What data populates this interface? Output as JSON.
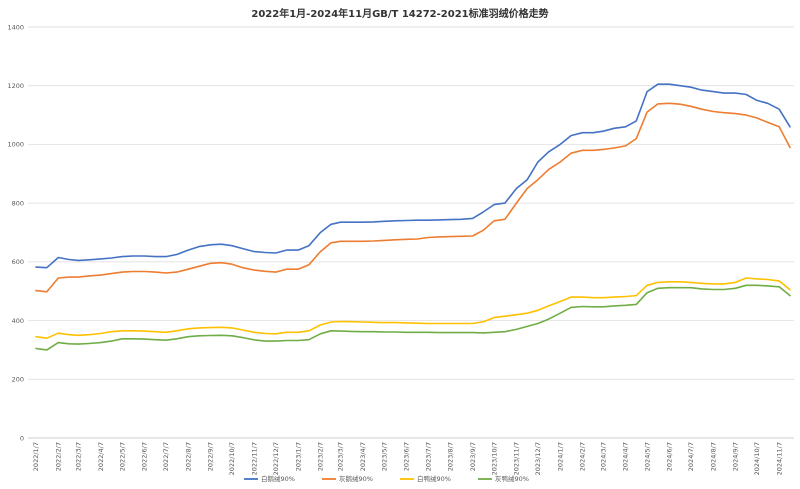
{
  "chart_data": {
    "type": "line",
    "title": "2022年1月-2024年11月GB/T 14272-2021标准羽绒价格走势",
    "xlabel": "",
    "ylabel": "",
    "ylim": [
      0,
      1400
    ],
    "yticks": [
      0,
      200,
      400,
      600,
      800,
      1000,
      1200,
      1400
    ],
    "grid": true,
    "legend": "bottom",
    "colors": {
      "白鹅绒90%": "#4472c4",
      "灰鹅绒90%": "#ed7d31",
      "白鸭绒90%": "#ffc000",
      "灰鸭绒90%": "#70ad47",
      "grid": "#d9d9d9"
    },
    "x_ticks": [
      "2022/1/7",
      "2022/2/7",
      "2022/3/7",
      "2022/4/7",
      "2022/5/7",
      "2022/6/7",
      "2022/7/7",
      "2022/8/7",
      "2022/9/7",
      "2022/10/7",
      "2022/11/7",
      "2022/12/7",
      "2023/1/7",
      "2023/2/7",
      "2023/3/7",
      "2023/4/7",
      "2023/5/7",
      "2023/6/7",
      "2023/7/7",
      "2023/8/7",
      "2023/9/7",
      "2023/10/7",
      "2023/11/7",
      "2023/12/7",
      "2024/1/7",
      "2024/2/7",
      "2024/3/7",
      "2024/4/7",
      "2024/5/7",
      "2024/6/7",
      "2024/7/7",
      "2024/8/7",
      "2024/9/7",
      "2024/10/7",
      "2024/11/7"
    ],
    "x": [
      "2022/1/7",
      "2022/1/22",
      "2022/2/7",
      "2022/2/22",
      "2022/3/7",
      "2022/3/22",
      "2022/4/7",
      "2022/4/22",
      "2022/5/7",
      "2022/5/22",
      "2022/6/7",
      "2022/6/22",
      "2022/7/7",
      "2022/7/22",
      "2022/8/7",
      "2022/8/22",
      "2022/9/7",
      "2022/9/22",
      "2022/10/7",
      "2022/10/22",
      "2022/11/7",
      "2022/11/22",
      "2022/12/7",
      "2022/12/22",
      "2023/1/7",
      "2023/1/22",
      "2023/2/7",
      "2023/2/22",
      "2023/3/7",
      "2023/3/22",
      "2023/4/7",
      "2023/4/22",
      "2023/5/7",
      "2023/5/22",
      "2023/6/7",
      "2023/6/22",
      "2023/7/7",
      "2023/7/22",
      "2023/8/7",
      "2023/8/22",
      "2023/9/7",
      "2023/9/22",
      "2023/10/7",
      "2023/10/22",
      "2023/11/7",
      "2023/11/22",
      "2023/12/7",
      "2023/12/22",
      "2024/1/7",
      "2024/1/22",
      "2024/2/7",
      "2024/2/22",
      "2024/3/7",
      "2024/3/22",
      "2024/4/7",
      "2024/4/22",
      "2024/5/7",
      "2024/5/22",
      "2024/6/7",
      "2024/6/22",
      "2024/7/7",
      "2024/7/22",
      "2024/8/7",
      "2024/8/22",
      "2024/9/7",
      "2024/9/22",
      "2024/10/7",
      "2024/10/22",
      "2024/11/7",
      "2024/11/22"
    ],
    "series": [
      {
        "name": "白鹅绒90%",
        "values": [
          582,
          580,
          615,
          608,
          605,
          607,
          610,
          613,
          618,
          620,
          620,
          618,
          618,
          625,
          640,
          652,
          658,
          660,
          655,
          645,
          635,
          632,
          630,
          640,
          640,
          655,
          700,
          728,
          735,
          735,
          735,
          736,
          738,
          740,
          741,
          742,
          742,
          743,
          744,
          745,
          748,
          770,
          795,
          800,
          850,
          880,
          940,
          975,
          1000,
          1030,
          1040,
          1040,
          1045,
          1055,
          1060,
          1080,
          1180,
          1205,
          1205,
          1200,
          1195,
          1185,
          1180,
          1175,
          1175,
          1170,
          1150,
          1140,
          1120,
          1060
        ]
      },
      {
        "name": "灰鹅绒90%",
        "values": [
          502,
          498,
          545,
          548,
          548,
          552,
          555,
          560,
          565,
          567,
          567,
          565,
          562,
          565,
          575,
          585,
          595,
          597,
          592,
          580,
          572,
          568,
          565,
          575,
          575,
          590,
          635,
          665,
          670,
          670,
          670,
          671,
          673,
          675,
          677,
          678,
          683,
          685,
          686,
          687,
          688,
          708,
          740,
          745,
          800,
          850,
          880,
          915,
          940,
          970,
          980,
          980,
          983,
          988,
          995,
          1020,
          1110,
          1138,
          1140,
          1137,
          1130,
          1120,
          1112,
          1108,
          1105,
          1100,
          1090,
          1075,
          1060,
          990
        ]
      },
      {
        "name": "白鸭绒90%",
        "values": [
          345,
          340,
          357,
          352,
          350,
          352,
          356,
          362,
          365,
          365,
          364,
          362,
          360,
          365,
          372,
          375,
          376,
          377,
          375,
          368,
          360,
          356,
          355,
          360,
          360,
          365,
          385,
          395,
          397,
          396,
          395,
          394,
          393,
          393,
          392,
          391,
          390,
          390,
          390,
          390,
          390,
          396,
          410,
          415,
          420,
          425,
          435,
          450,
          465,
          480,
          480,
          478,
          478,
          480,
          482,
          485,
          520,
          530,
          532,
          532,
          530,
          527,
          525,
          525,
          530,
          545,
          542,
          540,
          535,
          505
        ]
      },
      {
        "name": "灰鸭绒90%",
        "values": [
          305,
          300,
          325,
          321,
          320,
          322,
          325,
          330,
          338,
          338,
          337,
          335,
          333,
          338,
          345,
          348,
          349,
          350,
          348,
          342,
          334,
          330,
          330,
          332,
          332,
          335,
          355,
          365,
          364,
          363,
          362,
          362,
          361,
          361,
          360,
          360,
          360,
          359,
          359,
          359,
          359,
          358,
          360,
          362,
          370,
          380,
          390,
          405,
          425,
          445,
          448,
          447,
          447,
          450,
          452,
          455,
          495,
          510,
          512,
          512,
          512,
          508,
          506,
          506,
          510,
          520,
          520,
          518,
          515,
          485
        ]
      }
    ]
  }
}
